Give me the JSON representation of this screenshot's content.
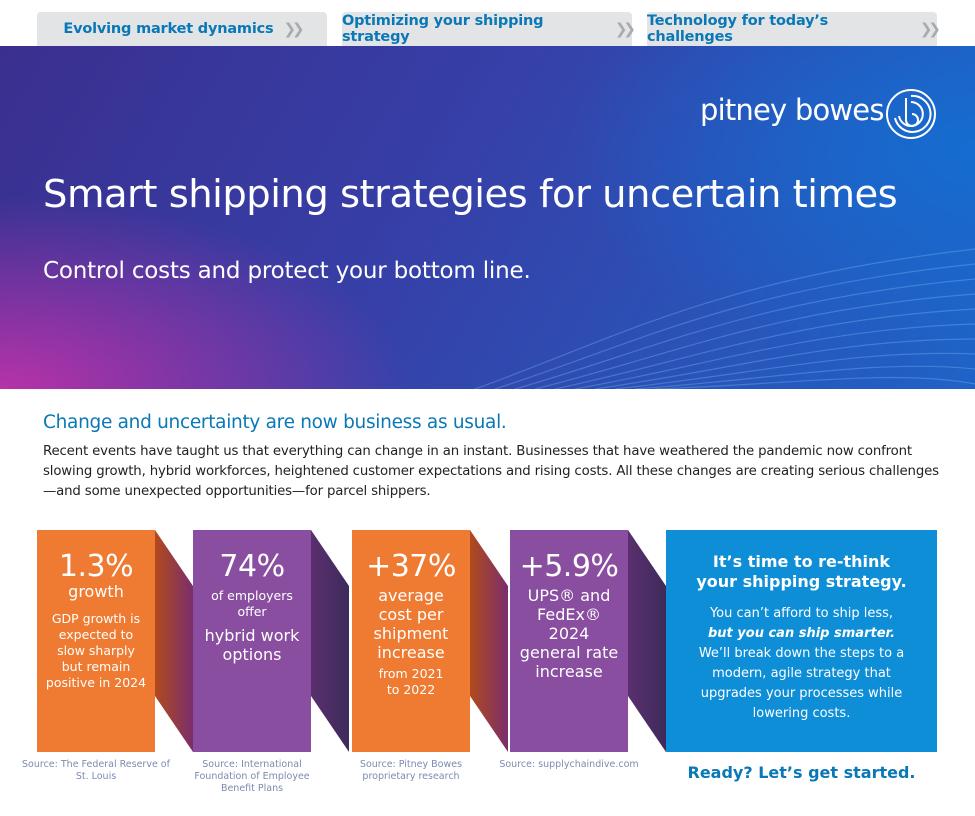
{
  "tabs": [
    {
      "label": "Evolving market dynamics"
    },
    {
      "label": "Optimizing your shipping strategy"
    },
    {
      "label": "Technology for today’s challenges"
    }
  ],
  "hero": {
    "logo_text": "pitney bowes",
    "title": "Smart shipping strategies for uncertain times",
    "subtitle": "Control costs and protect your bottom line."
  },
  "intro": {
    "heading": "Change and uncertainty are now business as usual.",
    "body": "Recent events have taught us that everything can change in an instant. Businesses that have weathered the pandemic now confront slowing growth, hybrid workforces, heightened customer expectations and rising costs. All these changes are creating serious challenges—and some unexpected opportunities—for parcel shippers."
  },
  "stats": [
    {
      "value": "1.3%",
      "label": "growth",
      "detail": "GDP growth is expected to slow sharply but remain positive in 2024",
      "source": "Source: The Federal Reserve of St. Louis"
    },
    {
      "value": "74%",
      "label": "of employers offer",
      "detail": "hybrid work options",
      "source": "Source: International Foundation of Employee Benefit Plans"
    },
    {
      "value": "+37%",
      "label": "average cost per shipment increase",
      "detail": "from 2021 to 2022",
      "source": "Source: Pitney Bowes proprietary research"
    },
    {
      "value": "+5.9%",
      "label": "UPS® and FedEx® 2024 general rate increase",
      "detail": "",
      "source": "Source: supplychaindive.com"
    }
  ],
  "cta": {
    "title_line1": "It’s time to re-think",
    "title_line2": "your shipping strategy.",
    "body_line1": "You can’t afford to ship less,",
    "body_emphasis": "but you can ship smarter.",
    "body_line3": "We’ll break down the steps to a modern, agile strategy that upgrades your processes while lowering costs.",
    "link": "Ready? Let’s get started."
  },
  "colors": {
    "accent_blue": "#0a78b6",
    "orange": "#ef7a31",
    "purple": "#8a4ea0",
    "cta_blue": "#0e8ed6"
  }
}
